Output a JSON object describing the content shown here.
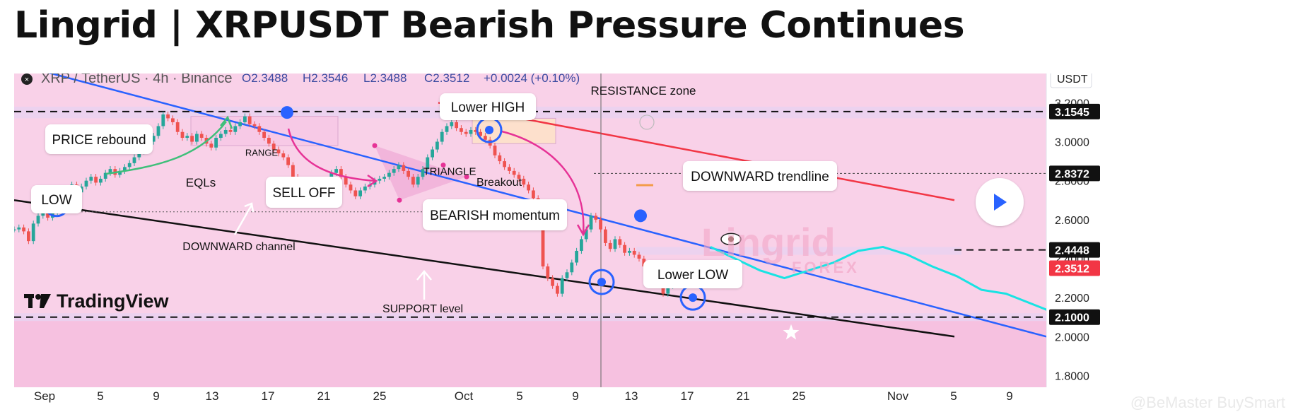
{
  "title": "Lingrid | XRPUSDT Bearish Pressure Continues",
  "header": {
    "symbol": "XRP / TetherUS · 4h · Binance",
    "ohlc": {
      "o": "O2.3488",
      "h": "H2.3546",
      "l": "L2.3488",
      "c": "C2.3512",
      "change": "+0.0024 (+0.10%)"
    },
    "currency": "USDT"
  },
  "brand": {
    "tradingview": "TradingView",
    "lingrid": "Lingrid",
    "forex": "FOREX"
  },
  "watermark": "@BeMaster BuySmart",
  "colors": {
    "up": "#26a69a",
    "down": "#ef5350",
    "trend_blue": "#2962ff",
    "resistance_red": "#f23645",
    "channel_black": "#111111",
    "plot_bg": "#f9d1e8",
    "zone": "#ead2ef",
    "current_price": "#f23645"
  },
  "chart_data": {
    "type": "line",
    "series": [
      {
        "values": [
          2.55,
          2.56,
          2.54,
          2.49,
          2.58,
          2.62,
          2.65,
          2.61,
          2.64,
          2.67,
          2.72,
          2.75,
          2.78,
          2.74,
          2.77,
          2.8,
          2.82,
          2.79,
          2.81,
          2.84,
          2.86,
          2.83,
          2.85,
          2.87,
          2.89,
          2.92,
          2.95,
          2.97,
          3.0,
          3.03,
          3.08,
          3.14,
          3.12,
          3.1,
          3.05,
          3.02,
          3.03,
          3.0,
          3.04,
          3.02,
          2.99,
          2.97,
          3.02,
          3.04,
          3.06,
          3.05,
          3.08,
          3.1,
          3.13,
          3.09,
          3.08,
          3.05,
          3.02,
          2.99,
          2.96,
          2.94,
          2.92,
          2.88,
          2.82,
          2.78,
          2.76,
          2.72,
          2.7,
          2.72,
          2.75,
          2.8,
          2.84,
          2.86,
          2.82,
          2.78,
          2.75,
          2.72,
          2.75,
          2.77,
          2.78,
          2.8,
          2.81,
          2.82,
          2.84,
          2.86,
          2.88,
          2.85,
          2.82,
          2.78,
          2.82,
          2.86,
          2.92,
          2.96,
          3.0,
          3.05,
          3.08,
          3.1,
          3.07,
          3.05,
          3.04,
          3.06,
          3.05,
          3.03,
          3.01,
          2.98,
          2.93,
          2.9,
          2.87,
          2.85,
          2.83,
          2.81,
          2.78,
          2.75,
          2.71,
          2.6,
          2.36,
          2.3,
          2.26,
          2.22,
          2.3,
          2.33,
          2.38,
          2.44,
          2.5,
          2.55,
          2.62,
          2.6,
          2.55,
          2.48,
          2.45,
          2.5,
          2.47,
          2.43,
          2.44,
          2.42,
          2.4,
          2.36,
          2.33,
          2.3,
          2.27,
          2.22,
          2.26,
          2.3,
          2.33,
          2.35
        ]
      },
      {
        "values": [
          2.46,
          2.4,
          2.34,
          2.3,
          2.34,
          2.38,
          2.44,
          2.46,
          2.42,
          2.36,
          2.31,
          2.24,
          2.22,
          2.17,
          2.12,
          2.06,
          2.04,
          2.01,
          1.96
        ]
      }
    ],
    "x_tick_labels": [
      "Sep",
      "5",
      "9",
      "13",
      "17",
      "21",
      "25",
      "Oct",
      "5",
      "9",
      "13",
      "17",
      "21",
      "25",
      "Nov",
      "5",
      "9"
    ],
    "y_tick_labels": [
      "3.2000",
      "3.0000",
      "2.8000",
      "2.6000",
      "2.4000",
      "2.2000",
      "2.0000",
      "1.8000"
    ],
    "price_labels": [
      "3.1545",
      "2.8372",
      "2.4448",
      "2.3512",
      "2.1000"
    ],
    "ylim": [
      1.74,
      3.35
    ],
    "levels": {
      "resistance": 3.1545,
      "support": 2.1,
      "dotted_high": 2.8372,
      "pivot": 2.4448,
      "current": 2.3512
    },
    "annotations": [
      "PRICE rebound",
      "LOW",
      "EQLs",
      "RANGE",
      "SELL OFF",
      "TRIANGLE",
      "Breakout",
      "Lower HIGH",
      "RESISTANCE zone",
      "BEARISH momentum",
      "DOWNWARD trendline",
      "DOWNWARD channel",
      "Lower LOW",
      "SUPPORT level"
    ],
    "grid": false,
    "legend": "none"
  }
}
